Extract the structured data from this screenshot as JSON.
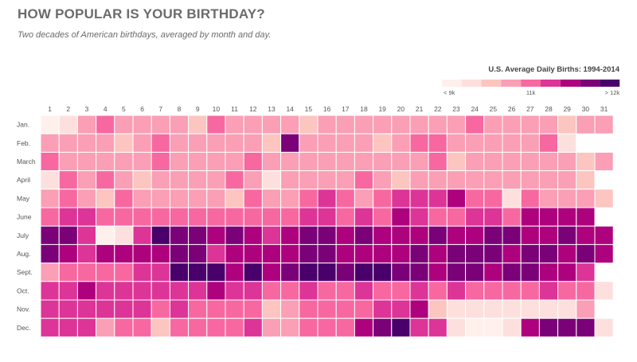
{
  "header": {
    "title": "HOW POPULAR IS YOUR BIRTHDAY?",
    "subtitle": "Two decades of American birthdays, averaged by month and day."
  },
  "legend": {
    "title": "U.S. Average Daily Births: 1994-2014",
    "labels": [
      "< 9k",
      "11k",
      "> 12k"
    ],
    "colors": [
      "#fff0ec",
      "#fde0dd",
      "#fcc5c0",
      "#fa9fb5",
      "#f768a1",
      "#dd3497",
      "#ae017e",
      "#7a0177",
      "#49006a"
    ]
  },
  "chart_data": {
    "type": "heatmap",
    "title": "HOW POPULAR IS YOUR BIRTHDAY?",
    "subtitle": "Two decades of American birthdays, averaged by month and day.",
    "legend_title": "U.S. Average Daily Births: 1994-2014",
    "color_scale_labels": [
      "< 9k",
      "11k",
      "> 12k"
    ],
    "x_labels": [
      "1",
      "2",
      "3",
      "4",
      "5",
      "6",
      "7",
      "8",
      "9",
      "10",
      "11",
      "12",
      "13",
      "14",
      "15",
      "16",
      "17",
      "18",
      "19",
      "20",
      "21",
      "22",
      "23",
      "24",
      "25",
      "26",
      "27",
      "28",
      "29",
      "30",
      "31"
    ],
    "y_labels": [
      "Jan.",
      "Feb.",
      "March",
      "April",
      "May",
      "June",
      "July",
      "Aug.",
      "Sept.",
      "Oct.",
      "Nov.",
      "Dec."
    ],
    "value_unit": "color bin index 0-8 (0 = < 9k, 8 = > 12k); null = no such date",
    "values": [
      [
        0,
        1,
        3,
        4,
        3,
        3,
        3,
        3,
        2,
        4,
        3,
        3,
        3,
        3,
        2,
        3,
        3,
        3,
        3,
        3,
        3,
        3,
        3,
        4,
        3,
        3,
        3,
        3,
        2,
        3,
        3
      ],
      [
        3,
        3,
        3,
        3,
        2,
        3,
        4,
        3,
        3,
        3,
        3,
        3,
        2,
        7,
        3,
        3,
        3,
        3,
        2,
        3,
        4,
        4,
        3,
        3,
        3,
        3,
        3,
        4,
        1,
        null,
        null
      ],
      [
        4,
        3,
        3,
        3,
        3,
        3,
        4,
        3,
        3,
        3,
        3,
        4,
        3,
        3,
        3,
        3,
        3,
        3,
        3,
        3,
        3,
        4,
        2,
        3,
        3,
        3,
        3,
        3,
        3,
        2,
        3
      ],
      [
        1,
        4,
        3,
        4,
        3,
        2,
        3,
        3,
        3,
        3,
        4,
        3,
        1,
        3,
        3,
        3,
        3,
        4,
        3,
        2,
        3,
        3,
        3,
        3,
        3,
        3,
        3,
        3,
        3,
        2,
        null
      ],
      [
        3,
        4,
        3,
        2,
        4,
        3,
        3,
        3,
        3,
        3,
        2,
        4,
        3,
        3,
        4,
        5,
        4,
        3,
        4,
        5,
        5,
        5,
        6,
        4,
        4,
        1,
        4,
        3,
        3,
        3,
        2
      ],
      [
        4,
        5,
        5,
        4,
        4,
        4,
        4,
        4,
        4,
        4,
        4,
        4,
        4,
        4,
        5,
        5,
        4,
        5,
        4,
        6,
        5,
        4,
        4,
        5,
        5,
        4,
        6,
        6,
        6,
        6,
        null
      ],
      [
        7,
        7,
        5,
        0,
        1,
        5,
        8,
        7,
        7,
        6,
        7,
        6,
        5,
        6,
        7,
        7,
        6,
        7,
        6,
        6,
        6,
        7,
        6,
        6,
        7,
        7,
        6,
        6,
        7,
        6,
        6
      ],
      [
        7,
        6,
        5,
        6,
        6,
        6,
        6,
        7,
        7,
        5,
        6,
        6,
        6,
        6,
        7,
        7,
        6,
        6,
        6,
        6,
        7,
        6,
        7,
        7,
        7,
        6,
        7,
        7,
        6,
        7,
        6
      ],
      [
        3,
        4,
        4,
        4,
        4,
        5,
        5,
        8,
        8,
        8,
        6,
        8,
        6,
        7,
        8,
        8,
        7,
        8,
        8,
        7,
        7,
        6,
        7,
        7,
        6,
        7,
        7,
        6,
        6,
        5,
        null
      ],
      [
        5,
        5,
        6,
        5,
        5,
        5,
        5,
        5,
        5,
        6,
        5,
        5,
        4,
        4,
        5,
        4,
        4,
        5,
        4,
        4,
        5,
        4,
        5,
        4,
        4,
        4,
        4,
        5,
        4,
        4,
        1
      ],
      [
        5,
        5,
        5,
        5,
        5,
        5,
        4,
        5,
        4,
        4,
        4,
        4,
        2,
        3,
        4,
        4,
        4,
        4,
        5,
        5,
        6,
        2,
        1,
        1,
        1,
        1,
        1,
        1,
        1,
        3,
        null
      ],
      [
        5,
        5,
        5,
        3,
        4,
        4,
        2,
        4,
        4,
        4,
        4,
        5,
        3,
        3,
        4,
        4,
        4,
        6,
        7,
        8,
        5,
        5,
        1,
        0,
        0,
        1,
        6,
        7,
        7,
        7,
        1
      ]
    ]
  }
}
